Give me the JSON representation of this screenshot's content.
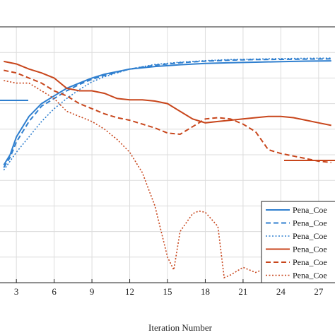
{
  "chart_data": {
    "type": "line",
    "xlabel": "Iteration Number",
    "ylabel": "",
    "title": "",
    "xlim": [
      1.7,
      28.3
    ],
    "ylim": [
      0,
      1
    ],
    "x_ticks": [
      "3",
      "6",
      "9",
      "12",
      "15",
      "18",
      "21",
      "24",
      "27"
    ],
    "x_tick_values": [
      3,
      6,
      9,
      12,
      15,
      18,
      21,
      24,
      27
    ],
    "grid": true,
    "legend_position": "bottom-right",
    "series": [
      {
        "name": "Pena_Coe",
        "color": "#2f7fcf",
        "dash": "solid",
        "x": [
          2,
          2.5,
          3,
          4,
          5,
          6,
          7,
          8,
          9,
          10,
          12,
          14,
          16,
          18,
          20,
          22,
          24,
          26,
          28
        ],
        "y": [
          0.46,
          0.5,
          0.57,
          0.65,
          0.7,
          0.73,
          0.76,
          0.78,
          0.8,
          0.815,
          0.835,
          0.845,
          0.852,
          0.857,
          0.86,
          0.862,
          0.864,
          0.866,
          0.867
        ]
      },
      {
        "name": "Pena_Coe",
        "color": "#2f7fcf",
        "dash": "dashed",
        "x": [
          2,
          2.5,
          3,
          4,
          5,
          6,
          7,
          8,
          9,
          10,
          12,
          14,
          16,
          18,
          20,
          22,
          24,
          26,
          28
        ],
        "y": [
          0.45,
          0.49,
          0.55,
          0.63,
          0.69,
          0.72,
          0.75,
          0.775,
          0.795,
          0.81,
          0.835,
          0.85,
          0.86,
          0.866,
          0.87,
          0.872,
          0.873,
          0.874,
          0.875
        ]
      },
      {
        "name": "Pena_Coe",
        "color": "#2f7fcf",
        "dash": "dotted",
        "x": [
          2,
          3,
          4,
          5,
          6,
          7,
          8,
          9,
          10,
          12,
          14,
          16,
          18,
          20,
          22,
          24,
          26,
          28
        ],
        "y": [
          0.44,
          0.51,
          0.57,
          0.63,
          0.68,
          0.72,
          0.755,
          0.785,
          0.805,
          0.835,
          0.853,
          0.862,
          0.868,
          0.872,
          0.874,
          0.876,
          0.877,
          0.878
        ]
      },
      {
        "name": "Pena_Coe",
        "color": "#c8461c",
        "dash": "solid",
        "x": [
          2,
          3,
          4,
          5,
          6,
          7,
          8,
          9,
          10,
          11,
          12,
          13,
          14,
          15,
          16,
          17,
          18,
          19,
          20,
          21,
          22,
          23,
          24,
          25,
          26,
          27,
          28
        ],
        "y": [
          0.865,
          0.855,
          0.835,
          0.82,
          0.8,
          0.76,
          0.75,
          0.75,
          0.74,
          0.72,
          0.715,
          0.715,
          0.71,
          0.7,
          0.67,
          0.64,
          0.625,
          0.63,
          0.635,
          0.64,
          0.645,
          0.65,
          0.65,
          0.645,
          0.635,
          0.625,
          0.615
        ]
      },
      {
        "name": "Pena_Coe",
        "color": "#c8461c",
        "dash": "dashed",
        "x": [
          2,
          3,
          4,
          5,
          6,
          7,
          8,
          9,
          10,
          11,
          12,
          13,
          14,
          15,
          16,
          17,
          18,
          19,
          20,
          21,
          22,
          23,
          24,
          25,
          26,
          27,
          28
        ],
        "y": [
          0.83,
          0.82,
          0.8,
          0.78,
          0.75,
          0.73,
          0.7,
          0.68,
          0.66,
          0.645,
          0.635,
          0.62,
          0.605,
          0.585,
          0.58,
          0.61,
          0.64,
          0.645,
          0.64,
          0.62,
          0.59,
          0.52,
          0.505,
          0.495,
          0.485,
          0.475,
          0.47
        ]
      },
      {
        "name": "Pena_Coe",
        "color": "#c8461c",
        "dash": "dotted",
        "x": [
          2,
          3,
          4,
          5,
          6,
          7,
          8,
          9,
          10,
          11,
          12,
          13,
          14,
          15,
          15.5,
          16,
          17,
          17.5,
          18,
          19,
          19.5,
          20,
          21,
          22,
          23,
          24,
          25,
          26,
          27,
          28
        ],
        "y": [
          0.79,
          0.78,
          0.78,
          0.75,
          0.72,
          0.67,
          0.65,
          0.63,
          0.6,
          0.56,
          0.51,
          0.43,
          0.3,
          0.1,
          0.05,
          0.2,
          0.27,
          0.28,
          0.275,
          0.22,
          0.02,
          0.03,
          0.06,
          0.04,
          0.06,
          0.08,
          0.09,
          0.1,
          0.11,
          0.12
        ]
      }
    ]
  },
  "legend": {
    "entries": [
      "Pena_Coe",
      "Pena_Coe",
      "Pena_Coe",
      "Pena_Coe",
      "Pena_Coe",
      "Pena_Coe"
    ]
  }
}
